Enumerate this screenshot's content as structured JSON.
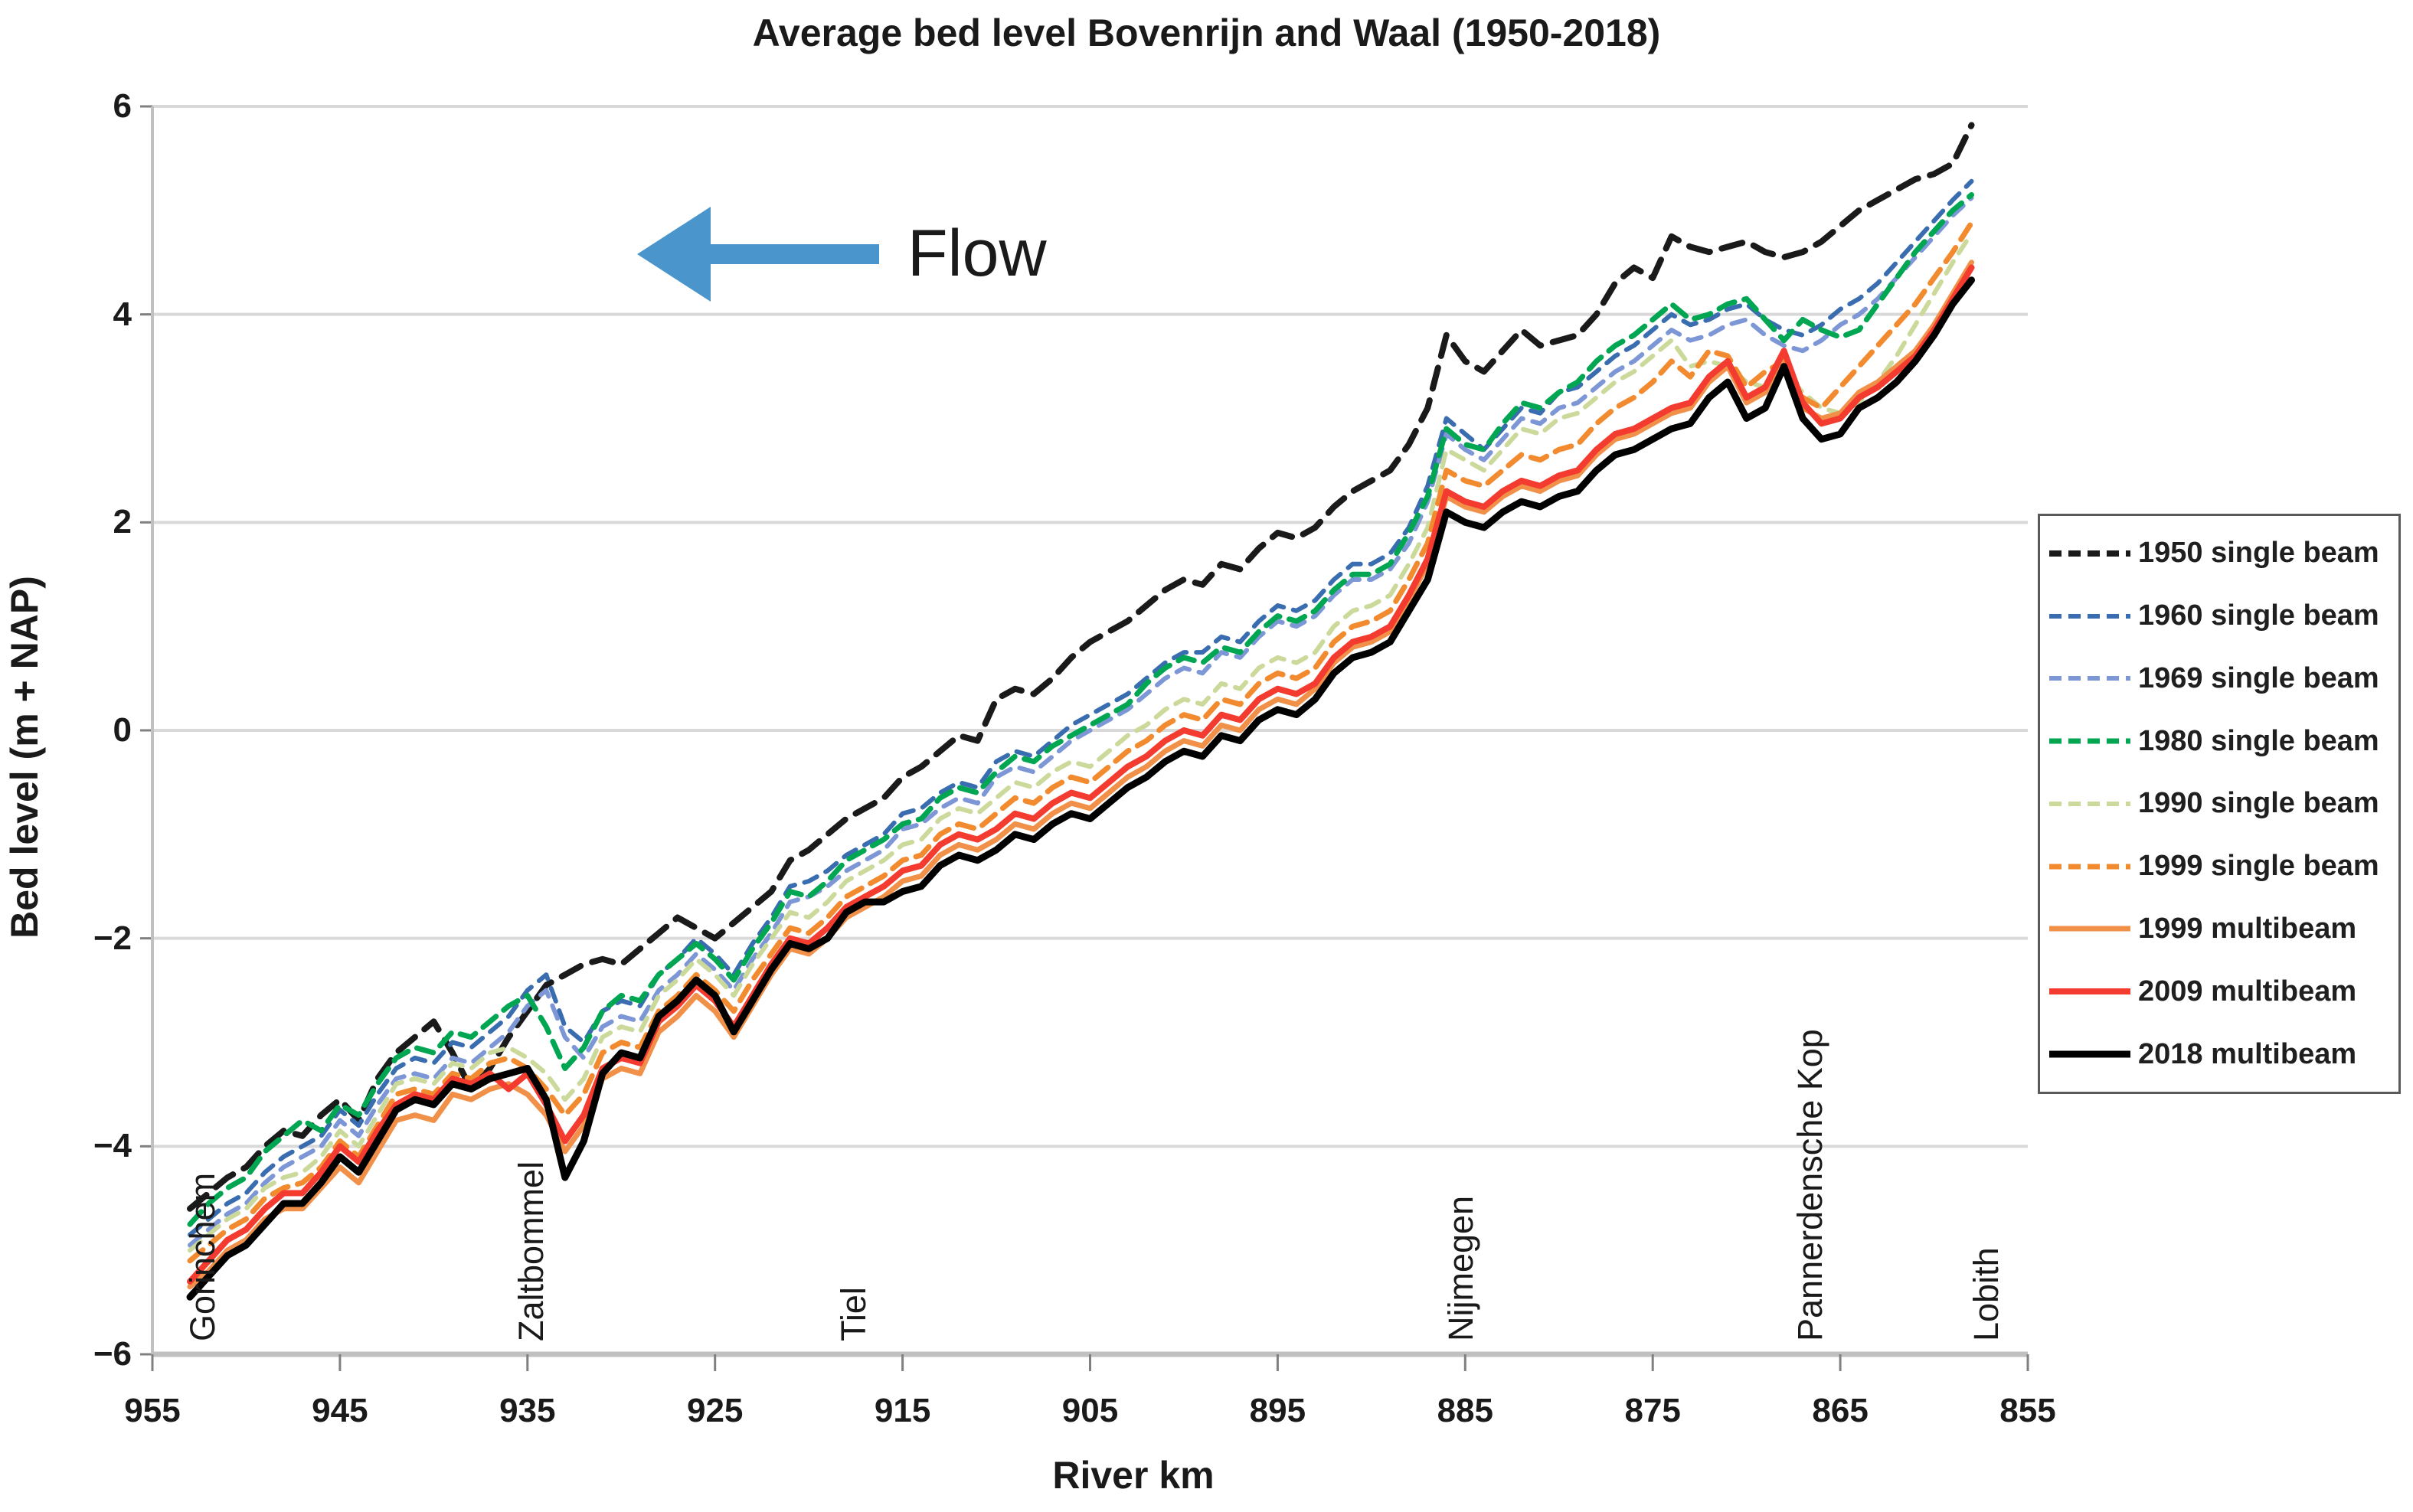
{
  "figure": {
    "flow_label": "Flow",
    "flow_arrow_color": "#4a96cc"
  },
  "chart_data": {
    "type": "line",
    "title": "Average bed level Bovenrijn and Waal (1950-2018)",
    "xlabel": "River km",
    "ylabel": "Bed level  (m + NAP)",
    "xlim": [
      955,
      855
    ],
    "ylim": [
      -6,
      6
    ],
    "x_axis_reversed": true,
    "grid": "horizontal",
    "legend_position": "right",
    "x_ticks": [
      955,
      945,
      935,
      925,
      915,
      905,
      895,
      885,
      875,
      865,
      855
    ],
    "y_ticks": [
      6,
      4,
      2,
      0,
      -2,
      -4,
      -6
    ],
    "stations": [
      {
        "name": "Gorinchem",
        "km": 952.3
      },
      {
        "name": "Zaltbommel",
        "km": 934.8
      },
      {
        "name": "Tiel",
        "km": 917.6
      },
      {
        "name": "Nijmegen",
        "km": 885.2
      },
      {
        "name": "Pannerdensche Kop",
        "km": 866.6
      },
      {
        "name": "Lobith",
        "km": 857.2
      }
    ],
    "x": [
      953,
      952,
      951,
      950,
      949,
      948,
      947,
      946,
      945,
      944,
      943,
      942,
      941,
      940,
      939,
      938,
      937,
      936,
      935,
      934,
      933,
      932,
      931,
      930,
      929,
      928,
      927,
      926,
      925,
      924,
      923,
      922,
      921,
      920,
      919,
      918,
      917,
      916,
      915,
      914,
      913,
      912,
      911,
      910,
      909,
      908,
      907,
      906,
      905,
      904,
      903,
      902,
      901,
      900,
      899,
      898,
      897,
      896,
      895,
      894,
      893,
      892,
      891,
      890,
      889,
      888,
      887,
      886,
      885,
      884,
      883,
      882,
      881,
      880,
      879,
      878,
      877,
      876,
      875,
      874,
      873,
      872,
      871,
      870,
      869,
      868,
      867,
      866,
      865,
      864,
      863,
      862,
      861,
      860,
      859,
      858
    ],
    "series": [
      {
        "name": "1950 single beam",
        "color": "#1a1a1a",
        "style": "dashed",
        "width": 8,
        "dash": "28 16",
        "values": [
          -4.6,
          -4.45,
          -4.3,
          -4.2,
          -4.0,
          -3.85,
          -3.9,
          -3.7,
          -3.55,
          -3.75,
          -3.35,
          -3.1,
          -2.95,
          -2.8,
          -3.1,
          -3.45,
          -3.25,
          -2.95,
          -2.7,
          -2.45,
          -2.35,
          -2.25,
          -2.2,
          -2.25,
          -2.1,
          -1.95,
          -1.8,
          -1.9,
          -2.0,
          -1.85,
          -1.7,
          -1.55,
          -1.25,
          -1.15,
          -1.0,
          -0.85,
          -0.75,
          -0.65,
          -0.45,
          -0.35,
          -0.2,
          -0.05,
          -0.1,
          0.3,
          0.4,
          0.35,
          0.5,
          0.7,
          0.85,
          0.95,
          1.05,
          1.2,
          1.35,
          1.45,
          1.4,
          1.6,
          1.55,
          1.75,
          1.9,
          1.85,
          1.95,
          2.15,
          2.3,
          2.4,
          2.5,
          2.75,
          3.1,
          3.8,
          3.55,
          3.45,
          3.65,
          3.85,
          3.7,
          3.75,
          3.8,
          4.0,
          4.3,
          4.45,
          4.35,
          4.75,
          4.65,
          4.6,
          4.65,
          4.7,
          4.6,
          4.55,
          4.6,
          4.7,
          4.85,
          5.0,
          5.1,
          5.2,
          5.3,
          5.35,
          5.45,
          5.82
        ]
      },
      {
        "name": "1960 single beam",
        "color": "#3a6db0",
        "style": "dashed",
        "width": 6,
        "dash": "18 13",
        "values": [
          -4.85,
          -4.7,
          -4.55,
          -4.45,
          -4.25,
          -4.1,
          -4.0,
          -3.9,
          -3.65,
          -3.8,
          -3.5,
          -3.25,
          -3.15,
          -3.2,
          -3.0,
          -3.05,
          -2.9,
          -2.75,
          -2.5,
          -2.35,
          -2.85,
          -3.0,
          -2.7,
          -2.6,
          -2.65,
          -2.35,
          -2.2,
          -2.0,
          -2.15,
          -2.35,
          -2.05,
          -1.8,
          -1.5,
          -1.45,
          -1.35,
          -1.2,
          -1.1,
          -1.0,
          -0.8,
          -0.75,
          -0.6,
          -0.5,
          -0.55,
          -0.3,
          -0.2,
          -0.25,
          -0.1,
          0.05,
          0.15,
          0.25,
          0.35,
          0.5,
          0.65,
          0.75,
          0.75,
          0.9,
          0.85,
          1.05,
          1.2,
          1.15,
          1.25,
          1.45,
          1.6,
          1.6,
          1.7,
          1.95,
          2.35,
          3.0,
          2.85,
          2.7,
          2.9,
          3.1,
          3.05,
          3.25,
          3.3,
          3.45,
          3.6,
          3.7,
          3.85,
          4.0,
          3.9,
          3.95,
          4.05,
          4.1,
          3.95,
          3.85,
          3.8,
          3.9,
          4.05,
          4.15,
          4.3,
          4.5,
          4.7,
          4.9,
          5.1,
          5.28
        ]
      },
      {
        "name": "1969 single beam",
        "color": "#7d96d6",
        "style": "dashed",
        "width": 6,
        "dash": "18 13",
        "values": [
          -4.95,
          -4.8,
          -4.65,
          -4.55,
          -4.35,
          -4.2,
          -4.1,
          -4.0,
          -3.75,
          -3.9,
          -3.6,
          -3.35,
          -3.3,
          -3.35,
          -3.15,
          -3.2,
          -3.05,
          -2.9,
          -2.65,
          -2.5,
          -2.95,
          -3.15,
          -2.85,
          -2.75,
          -2.8,
          -2.5,
          -2.35,
          -2.15,
          -2.3,
          -2.5,
          -2.2,
          -1.95,
          -1.65,
          -1.6,
          -1.5,
          -1.35,
          -1.25,
          -1.15,
          -0.95,
          -0.9,
          -0.75,
          -0.65,
          -0.7,
          -0.45,
          -0.35,
          -0.4,
          -0.25,
          -0.1,
          0.0,
          0.1,
          0.2,
          0.35,
          0.5,
          0.6,
          0.55,
          0.75,
          0.7,
          0.9,
          1.05,
          1.0,
          1.1,
          1.3,
          1.45,
          1.45,
          1.55,
          1.8,
          2.2,
          2.85,
          2.7,
          2.6,
          2.8,
          3.0,
          2.95,
          3.1,
          3.15,
          3.3,
          3.45,
          3.55,
          3.7,
          3.85,
          3.75,
          3.8,
          3.9,
          3.95,
          3.8,
          3.7,
          3.65,
          3.75,
          3.9,
          4.0,
          4.15,
          4.35,
          4.55,
          4.75,
          4.95,
          5.12
        ]
      },
      {
        "name": "1980 single beam",
        "color": "#00a651",
        "style": "dashed",
        "width": 7,
        "dash": "22 13",
        "values": [
          -4.75,
          -4.55,
          -4.4,
          -4.3,
          -4.05,
          -3.9,
          -3.75,
          -3.85,
          -3.6,
          -3.7,
          -3.4,
          -3.15,
          -3.05,
          -3.1,
          -2.9,
          -2.95,
          -2.8,
          -2.65,
          -2.55,
          -2.85,
          -3.25,
          -3.05,
          -2.7,
          -2.55,
          -2.6,
          -2.35,
          -2.2,
          -2.05,
          -2.2,
          -2.4,
          -2.1,
          -1.85,
          -1.55,
          -1.6,
          -1.45,
          -1.25,
          -1.15,
          -1.05,
          -0.9,
          -0.85,
          -0.65,
          -0.55,
          -0.6,
          -0.4,
          -0.25,
          -0.3,
          -0.15,
          -0.05,
          0.05,
          0.15,
          0.25,
          0.45,
          0.6,
          0.7,
          0.65,
          0.8,
          0.75,
          0.95,
          1.1,
          1.05,
          1.15,
          1.35,
          1.5,
          1.5,
          1.6,
          1.9,
          2.25,
          2.9,
          2.75,
          2.7,
          2.95,
          3.15,
          3.1,
          3.25,
          3.35,
          3.55,
          3.7,
          3.8,
          3.95,
          4.1,
          3.95,
          4.0,
          4.1,
          4.15,
          3.95,
          3.75,
          3.95,
          3.85,
          3.78,
          3.85,
          4.1,
          4.35,
          4.6,
          4.8,
          5.0,
          5.15
        ]
      },
      {
        "name": "1990 single beam",
        "color": "#cbd99b",
        "style": "dashed",
        "width": 6,
        "dash": "18 13",
        "values": [
          -5.0,
          -4.85,
          -4.7,
          -4.6,
          -4.4,
          -4.3,
          -4.25,
          -4.1,
          -3.85,
          -4.0,
          -3.7,
          -3.4,
          -3.35,
          -3.4,
          -3.2,
          -3.25,
          -3.1,
          -3.05,
          -3.15,
          -3.3,
          -3.55,
          -3.35,
          -2.95,
          -2.85,
          -2.9,
          -2.55,
          -2.4,
          -2.2,
          -2.35,
          -2.55,
          -2.25,
          -2.0,
          -1.75,
          -1.8,
          -1.65,
          -1.45,
          -1.35,
          -1.25,
          -1.1,
          -1.05,
          -0.85,
          -0.75,
          -0.8,
          -0.65,
          -0.5,
          -0.55,
          -0.4,
          -0.3,
          -0.35,
          -0.2,
          -0.05,
          0.05,
          0.2,
          0.3,
          0.25,
          0.45,
          0.4,
          0.6,
          0.7,
          0.65,
          0.75,
          1.0,
          1.15,
          1.2,
          1.3,
          1.6,
          1.95,
          2.7,
          2.6,
          2.5,
          2.7,
          2.9,
          2.85,
          3.0,
          3.05,
          3.2,
          3.35,
          3.45,
          3.6,
          3.75,
          3.5,
          3.55,
          3.5,
          3.35,
          3.3,
          3.45,
          3.25,
          3.1,
          3.05,
          3.15,
          3.35,
          3.6,
          3.9,
          4.2,
          4.5,
          4.78
        ]
      },
      {
        "name": "1999 single beam",
        "color": "#f28b2f",
        "style": "dashed",
        "width": 7,
        "dash": "22 13",
        "values": [
          -5.1,
          -4.95,
          -4.8,
          -4.7,
          -4.5,
          -4.4,
          -4.35,
          -4.2,
          -3.95,
          -4.1,
          -3.8,
          -3.5,
          -3.45,
          -3.5,
          -3.3,
          -3.35,
          -3.2,
          -3.15,
          -3.25,
          -3.45,
          -3.7,
          -3.5,
          -3.1,
          -3.0,
          -3.05,
          -2.7,
          -2.55,
          -2.35,
          -2.5,
          -2.7,
          -2.4,
          -2.15,
          -1.9,
          -1.95,
          -1.8,
          -1.6,
          -1.5,
          -1.4,
          -1.25,
          -1.2,
          -1.0,
          -0.9,
          -0.95,
          -0.8,
          -0.65,
          -0.7,
          -0.55,
          -0.45,
          -0.5,
          -0.35,
          -0.2,
          -0.1,
          0.05,
          0.15,
          0.1,
          0.3,
          0.25,
          0.45,
          0.55,
          0.5,
          0.6,
          0.85,
          1.0,
          1.05,
          1.15,
          1.45,
          1.8,
          2.5,
          2.4,
          2.35,
          2.5,
          2.65,
          2.6,
          2.7,
          2.75,
          2.95,
          3.1,
          3.2,
          3.35,
          3.55,
          3.4,
          3.65,
          3.6,
          3.3,
          3.45,
          3.55,
          3.2,
          3.1,
          3.3,
          3.5,
          3.7,
          3.9,
          4.1,
          4.35,
          4.6,
          4.88
        ]
      },
      {
        "name": "1999 multibeam",
        "color": "#f19048",
        "style": "solid",
        "width": 7,
        "dash": "",
        "values": [
          -5.35,
          -5.2,
          -5.0,
          -4.9,
          -4.7,
          -4.6,
          -4.6,
          -4.4,
          -4.2,
          -4.35,
          -4.05,
          -3.75,
          -3.7,
          -3.75,
          -3.5,
          -3.55,
          -3.45,
          -3.4,
          -3.5,
          -3.7,
          -4.05,
          -3.8,
          -3.35,
          -3.25,
          -3.3,
          -2.9,
          -2.75,
          -2.55,
          -2.7,
          -2.95,
          -2.65,
          -2.35,
          -2.1,
          -2.15,
          -2.0,
          -1.8,
          -1.7,
          -1.6,
          -1.45,
          -1.4,
          -1.2,
          -1.1,
          -1.15,
          -1.05,
          -0.9,
          -0.95,
          -0.8,
          -0.7,
          -0.75,
          -0.6,
          -0.45,
          -0.35,
          -0.2,
          -0.1,
          -0.15,
          0.05,
          0.0,
          0.2,
          0.3,
          0.25,
          0.4,
          0.65,
          0.8,
          0.85,
          0.95,
          1.25,
          1.6,
          2.25,
          2.15,
          2.1,
          2.25,
          2.35,
          2.3,
          2.4,
          2.45,
          2.65,
          2.8,
          2.85,
          2.95,
          3.05,
          3.1,
          3.35,
          3.5,
          3.15,
          3.25,
          3.6,
          3.1,
          3.0,
          3.05,
          3.25,
          3.35,
          3.5,
          3.65,
          3.9,
          4.2,
          4.5
        ]
      },
      {
        "name": "2009 multibeam",
        "color": "#f43b30",
        "style": "solid",
        "width": 8,
        "dash": "",
        "values": [
          -5.3,
          -5.1,
          -4.9,
          -4.8,
          -4.6,
          -4.45,
          -4.45,
          -4.25,
          -4.0,
          -4.15,
          -3.85,
          -3.6,
          -3.5,
          -3.55,
          -3.35,
          -3.4,
          -3.3,
          -3.45,
          -3.3,
          -3.6,
          -3.95,
          -3.7,
          -3.25,
          -3.15,
          -3.2,
          -2.8,
          -2.65,
          -2.45,
          -2.6,
          -2.85,
          -2.55,
          -2.25,
          -2.0,
          -2.05,
          -1.9,
          -1.7,
          -1.6,
          -1.5,
          -1.35,
          -1.3,
          -1.1,
          -1.0,
          -1.05,
          -0.95,
          -0.8,
          -0.85,
          -0.7,
          -0.6,
          -0.65,
          -0.5,
          -0.35,
          -0.25,
          -0.1,
          0.0,
          -0.05,
          0.15,
          0.1,
          0.3,
          0.4,
          0.35,
          0.45,
          0.7,
          0.85,
          0.9,
          1.0,
          1.3,
          1.65,
          2.3,
          2.2,
          2.15,
          2.3,
          2.4,
          2.35,
          2.45,
          2.5,
          2.7,
          2.85,
          2.9,
          3.0,
          3.1,
          3.15,
          3.4,
          3.55,
          3.2,
          3.3,
          3.65,
          3.15,
          2.95,
          3.0,
          3.2,
          3.3,
          3.45,
          3.6,
          3.85,
          4.15,
          4.45
        ]
      },
      {
        "name": "2018 multibeam",
        "color": "#000000",
        "style": "solid",
        "width": 9,
        "dash": "",
        "values": [
          -5.45,
          -5.25,
          -5.05,
          -4.95,
          -4.75,
          -4.55,
          -4.55,
          -4.35,
          -4.1,
          -4.25,
          -3.95,
          -3.65,
          -3.55,
          -3.6,
          -3.4,
          -3.45,
          -3.35,
          -3.3,
          -3.25,
          -3.55,
          -4.3,
          -3.95,
          -3.3,
          -3.1,
          -3.15,
          -2.75,
          -2.6,
          -2.4,
          -2.55,
          -2.9,
          -2.6,
          -2.3,
          -2.05,
          -2.1,
          -2.0,
          -1.75,
          -1.65,
          -1.65,
          -1.55,
          -1.5,
          -1.3,
          -1.2,
          -1.25,
          -1.15,
          -1.0,
          -1.05,
          -0.9,
          -0.8,
          -0.85,
          -0.7,
          -0.55,
          -0.45,
          -0.3,
          -0.2,
          -0.25,
          -0.05,
          -0.1,
          0.1,
          0.2,
          0.15,
          0.3,
          0.55,
          0.7,
          0.75,
          0.85,
          1.15,
          1.45,
          2.1,
          2.0,
          1.95,
          2.1,
          2.2,
          2.15,
          2.25,
          2.3,
          2.5,
          2.65,
          2.7,
          2.8,
          2.9,
          2.95,
          3.2,
          3.35,
          3.0,
          3.1,
          3.5,
          3.0,
          2.8,
          2.85,
          3.1,
          3.2,
          3.35,
          3.55,
          3.8,
          4.1,
          4.33
        ]
      }
    ]
  },
  "axes_style": {
    "grid_color": "#d9d9d9",
    "axis_color": "#c0c0c0",
    "tick_color": "#808080"
  }
}
